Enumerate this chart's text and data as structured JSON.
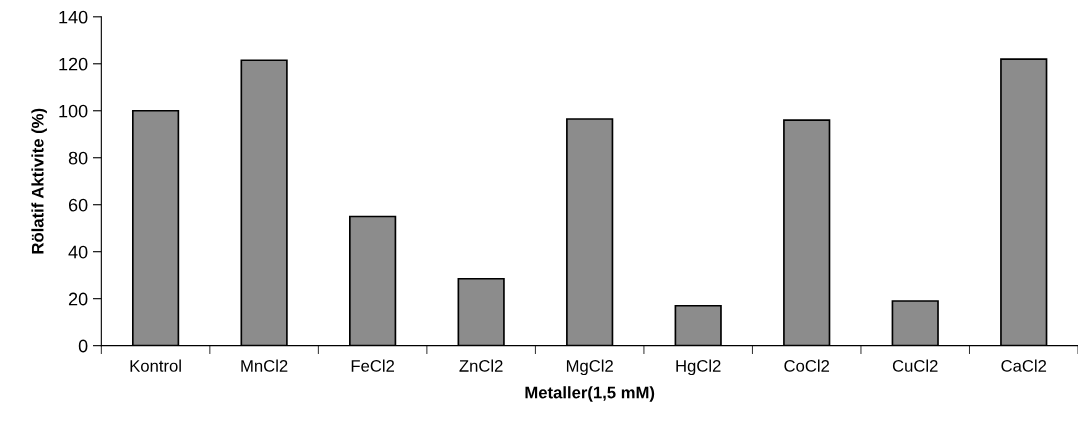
{
  "chart_data": {
    "type": "bar",
    "xlabel": "Metaller(1,5 mM)",
    "ylabel": "Rölatif Aktivite (%)",
    "categories": [
      "Kontrol",
      "MnCl2",
      "FeCl2",
      "ZnCl2",
      "MgCl2",
      "HgCl2",
      "CoCl2",
      "CuCl2",
      "CaCl2"
    ],
    "values": [
      100,
      121.5,
      55,
      28.5,
      96.5,
      17,
      96,
      19,
      122
    ],
    "color": "#8c8c8c",
    "ylim": [
      0,
      140
    ],
    "yticks": [
      0,
      20,
      40,
      60,
      80,
      100,
      120,
      140
    ],
    "grid": false,
    "legend": false
  }
}
